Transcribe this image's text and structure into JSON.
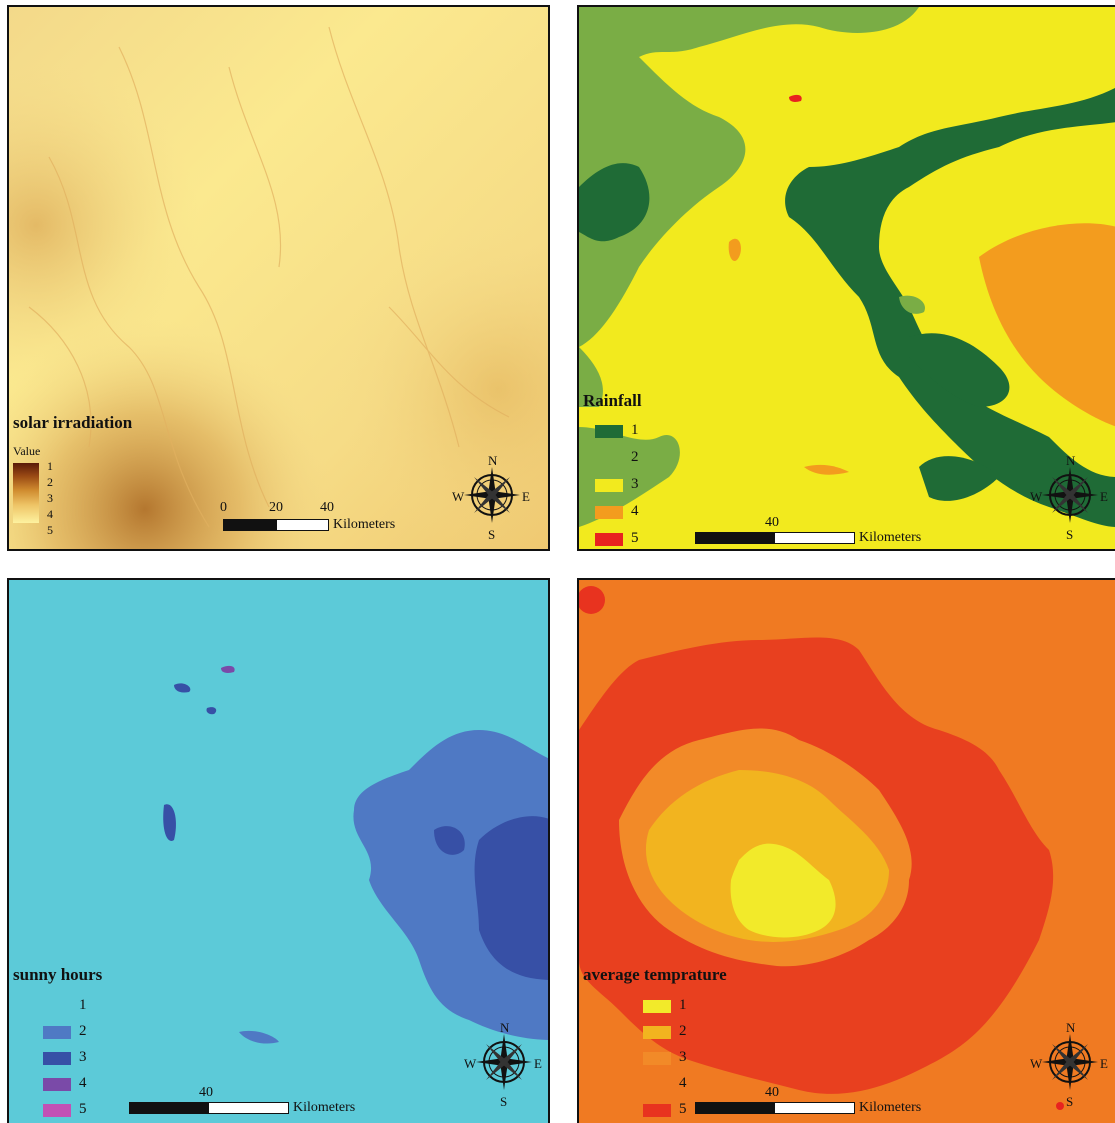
{
  "panels": {
    "solar": {
      "title": "solar irradiation",
      "subtitle": "Value",
      "classes": [
        "1",
        "2",
        "3",
        "4",
        "5"
      ],
      "scale": {
        "ticks": [
          "0",
          "20",
          "40"
        ],
        "unit": "Kilometers"
      }
    },
    "rainfall": {
      "title": "Rainfall",
      "classes": [
        {
          "label": "1",
          "color": "#1f6b36"
        },
        {
          "label": "2",
          "color": "#7aad45"
        },
        {
          "label": "3",
          "color": "#f2ea1e"
        },
        {
          "label": "4",
          "color": "#f39c1e"
        },
        {
          "label": "5",
          "color": "#e8231f"
        }
      ],
      "scale": {
        "ticks": [
          "40"
        ],
        "unit": "Kilometers"
      }
    },
    "sunny": {
      "title": "sunny hours",
      "classes": [
        {
          "label": "1",
          "color": "#5ccad8"
        },
        {
          "label": "2",
          "color": "#4f79c4"
        },
        {
          "label": "3",
          "color": "#3750a6"
        },
        {
          "label": "4",
          "color": "#7a4aa8"
        },
        {
          "label": "5",
          "color": "#c251b5"
        }
      ],
      "scale": {
        "ticks": [
          "40"
        ],
        "unit": "Kilometers"
      }
    },
    "temperature": {
      "title": "average temprature",
      "classes": [
        {
          "label": "1",
          "color": "#f2ea2a"
        },
        {
          "label": "2",
          "color": "#f2b41f"
        },
        {
          "label": "3",
          "color": "#f28a28"
        },
        {
          "label": "4",
          "color": "#f07a22"
        },
        {
          "label": "5",
          "color": "#e8331f"
        }
      ],
      "scale": {
        "ticks": [
          "40"
        ],
        "unit": "Kilometers"
      }
    }
  },
  "compass": {
    "n": "N",
    "s": "S",
    "e": "E",
    "w": "W"
  }
}
